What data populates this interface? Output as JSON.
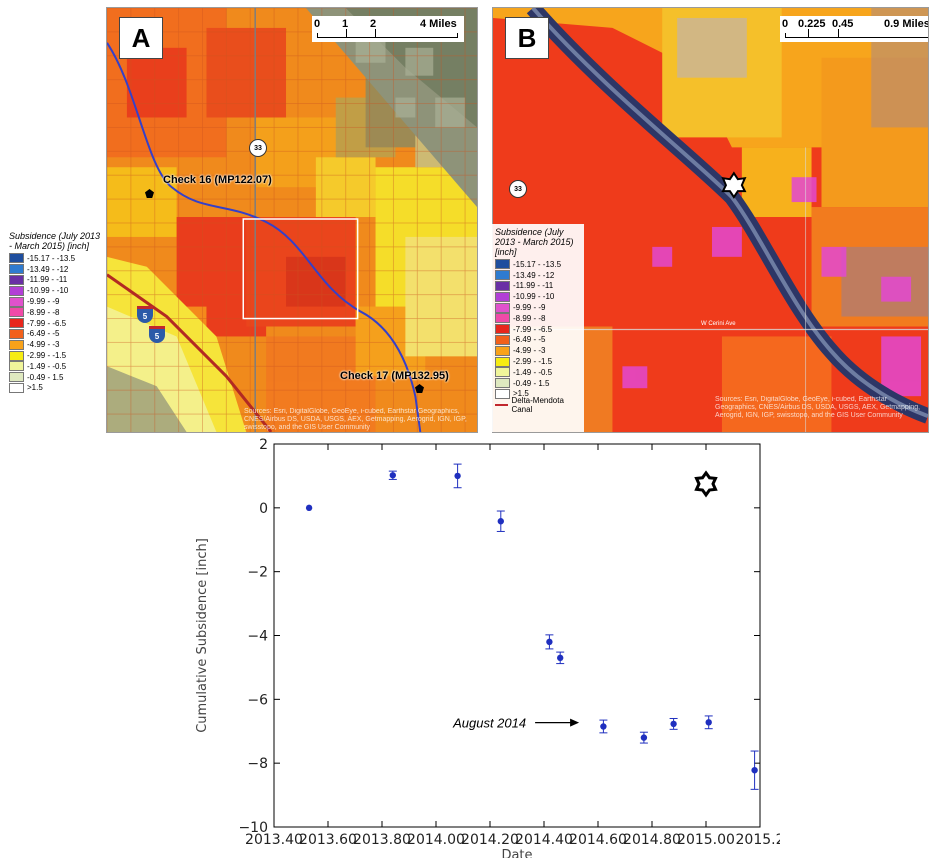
{
  "panel_a": {
    "letter": "A",
    "scale_ticks": [
      "0",
      "1",
      "2",
      "4 Miles"
    ],
    "highway_label": "33",
    "interstate_label": "5",
    "check_16": "Check 16 (MP122.07)",
    "check_17": "Check 17 (MP132.95)",
    "attribution": "Sources: Esri, DigitalGlobe, GeoEye, i-cubed, Earthstar Geographics, CNES/Airbus DS, USDA, USGS, AEX, Getmapping, Aerogrid, IGN, IGP, swisstopo, and the GIS User Community"
  },
  "panel_b": {
    "letter": "B",
    "scale_ticks": [
      "0",
      "0.225",
      "0.45",
      "0.9 Miles"
    ],
    "highway_label": "33",
    "road_label": "W Cerini Ave",
    "attribution": "Sources: Esri, DigitalGlobe, GeoEye, i-cubed, Earthstar Geographics, CNES/Airbus DS, USDA, USGS, AEX, Getmapping, Aerogrid, IGN, IGP, swisstopo, and the GIS User Community"
  },
  "legend": {
    "title": "Subsidence (July 2013 - March 2015) [inch]",
    "items": [
      {
        "label": "-15.17 - -13.5",
        "color": "#1f4e9e"
      },
      {
        "label": "-13.49 - -12",
        "color": "#2f7bd0"
      },
      {
        "label": "-11.99 - -11",
        "color": "#6a2fa5"
      },
      {
        "label": "-10.99 - -10",
        "color": "#b23fd6"
      },
      {
        "label": "-9.99 - -9",
        "color": "#e052cc"
      },
      {
        "label": "-8.99 - -8",
        "color": "#f04aa8"
      },
      {
        "label": "-7.99 - -6.5",
        "color": "#e8261c"
      },
      {
        "label": "-6.49 - -5",
        "color": "#f2601b"
      },
      {
        "label": "-4.99 - -3",
        "color": "#f8a21a"
      },
      {
        "label": "-2.99 - -1.5",
        "color": "#f6ec12"
      },
      {
        "label": "-1.49 - -0.5",
        "color": "#f0f59a"
      },
      {
        "label": "-0.49 - 1.5",
        "color": "#dfe9c0"
      },
      {
        "label": ">1.5",
        "color": "#ffffff"
      }
    ],
    "canal_label": "Delta-Mendota Canal",
    "canal_color": "#c1272d"
  },
  "chart_data": {
    "type": "scatter",
    "xlabel": "Date",
    "ylabel": "Cumulative Subsidence [inch]",
    "xlim": [
      2013.4,
      2015.2
    ],
    "ylim": [
      -10,
      2
    ],
    "x_ticks": [
      "2013.4",
      "2013.6",
      "2013.8",
      "2014.0",
      "2014.2",
      "2014.4",
      "2014.6",
      "2014.8",
      "2015.0",
      "2015.2"
    ],
    "x_tick_labels": [
      "2013.40",
      "2013.60",
      "2013.80",
      "2014.00",
      "2014.20",
      "2014.40",
      "2014.60",
      "2014.80",
      "2015.00",
      "2015.2"
    ],
    "y_ticks": [
      2,
      0,
      -2,
      -4,
      -6,
      -8,
      -10
    ],
    "grid": false,
    "marker_color": "#1f2fbf",
    "points": [
      {
        "x": 2013.53,
        "y": 0.0,
        "err": 0.0
      },
      {
        "x": 2013.84,
        "y": 1.02,
        "err": 0.13
      },
      {
        "x": 2014.08,
        "y": 1.0,
        "err": 0.37
      },
      {
        "x": 2014.24,
        "y": -0.42,
        "err": 0.32
      },
      {
        "x": 2014.42,
        "y": -4.2,
        "err": 0.22
      },
      {
        "x": 2014.46,
        "y": -4.7,
        "err": 0.18
      },
      {
        "x": 2014.62,
        "y": -6.85,
        "err": 0.2
      },
      {
        "x": 2014.77,
        "y": -7.2,
        "err": 0.17
      },
      {
        "x": 2014.88,
        "y": -6.77,
        "err": 0.17
      },
      {
        "x": 2015.01,
        "y": -6.72,
        "err": 0.2
      },
      {
        "x": 2015.18,
        "y": -8.22,
        "err": 0.6
      }
    ],
    "annotation": "August 2014",
    "annotation_target": {
      "x": 2014.53,
      "y": -6.73
    },
    "star_marker": {
      "x": 2015.0,
      "y": 0.75
    }
  }
}
